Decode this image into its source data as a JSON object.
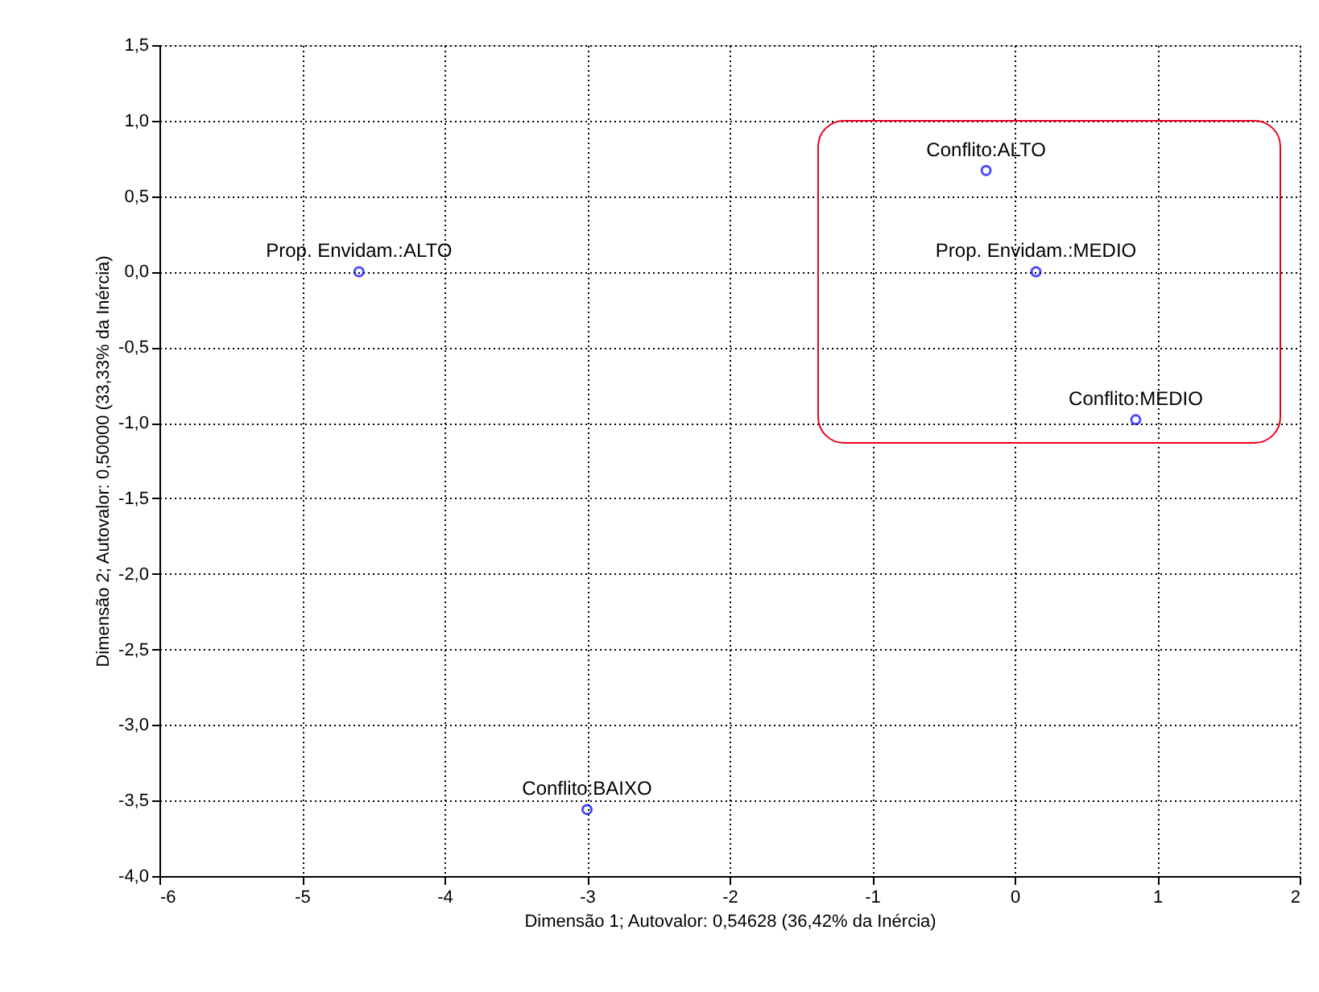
{
  "chart_data": {
    "type": "scatter",
    "xlabel": "Dimensão 1; Autovalor: 0,54628 (36,42% da Inércia)",
    "ylabel": "Dimensão 2; Autovalor: 0,50000 (33,33% da Inércia)",
    "x": [
      -4.6,
      -0.2,
      0.15,
      0.85,
      -3.0
    ],
    "series": [
      {
        "color": "#0000ff",
        "values": [
          0.0,
          0.67,
          0.0,
          -0.98,
          -3.56
        ]
      }
    ],
    "annotations": [
      {
        "text": "Prop. Envidam.:ALTO",
        "x": -4.6,
        "y": 0.0
      },
      {
        "text": "Conflito:ALTO",
        "x": -0.2,
        "y": 0.67
      },
      {
        "text": "Prop. Envidam.:MEDIO",
        "x": 0.15,
        "y": 0.0
      },
      {
        "text": "Conflito:MEDIO",
        "x": 0.85,
        "y": -0.98
      },
      {
        "text": "Conflito:BAIXO",
        "x": -3.0,
        "y": -3.56
      }
    ],
    "xlim": [
      -6,
      2
    ],
    "xticks": [
      -6,
      -5,
      -4,
      -3,
      -2,
      -1,
      0,
      1,
      2
    ],
    "ylim": [
      -4.0,
      1.5
    ],
    "yticks": [
      {
        "value": -4.0,
        "label": "-4,0"
      },
      {
        "value": -3.5,
        "label": "-3,5"
      },
      {
        "value": -3.0,
        "label": "-3,0"
      },
      {
        "value": -2.5,
        "label": "-2,5"
      },
      {
        "value": -2.0,
        "label": "-2,0"
      },
      {
        "value": -1.5,
        "label": "-1,5"
      },
      {
        "value": -1.0,
        "label": "-1,0"
      },
      {
        "value": -0.5,
        "label": "-0,5"
      },
      {
        "value": 0.0,
        "label": "0,0"
      },
      {
        "value": 0.5,
        "label": "0,5"
      },
      {
        "value": 1.0,
        "label": "1,0"
      },
      {
        "value": 1.5,
        "label": "1,5"
      }
    ],
    "grid": true,
    "marker": "circle"
  }
}
